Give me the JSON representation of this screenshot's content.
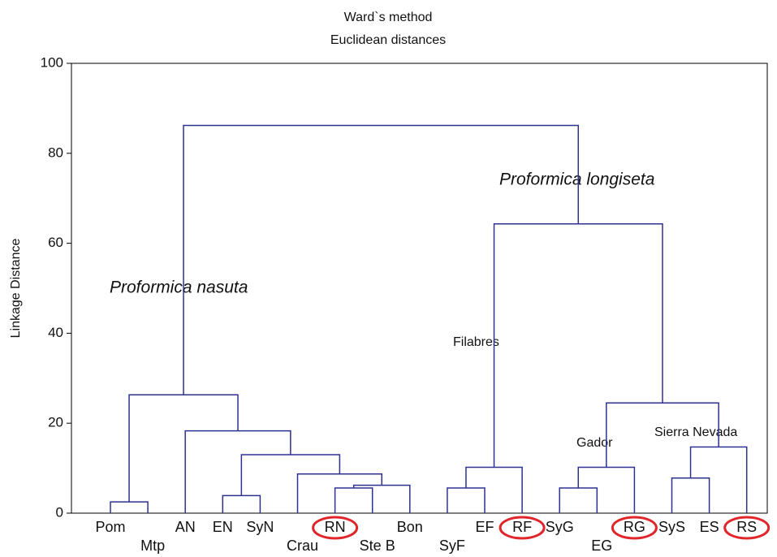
{
  "chart_data": {
    "type": "dendrogram",
    "title": "Ward`s method",
    "subtitle": "Euclidean distances",
    "y_label": "Linkage Distance",
    "ylim": [
      0,
      100
    ],
    "yticks": [
      0,
      20,
      40,
      60,
      80,
      100
    ],
    "color": "#2e3192",
    "circle_color": "#e0262b",
    "leaves": [
      "Pom",
      "Mtp",
      "AN",
      "EN",
      "SyN",
      "Crau",
      "RN",
      "Ste B",
      "Bon",
      "SyF",
      "EF",
      "RF",
      "SyG",
      "EG",
      "RG",
      "SyS",
      "ES",
      "RS"
    ],
    "circled": [
      6,
      11,
      14,
      17
    ],
    "merges": [
      {
        "left": 0,
        "right": 1,
        "height": 2.5
      },
      {
        "left": 3,
        "right": 4,
        "height": 3.9
      },
      {
        "left": 6,
        "right": 7,
        "height": 5.6
      },
      {
        "left": 20,
        "right": 8,
        "height": 6.2
      },
      {
        "left": 5,
        "right": 21,
        "height": 8.7
      },
      {
        "left": 19,
        "right": 22,
        "height": 13.0
      },
      {
        "left": 2,
        "right": 23,
        "height": 18.3
      },
      {
        "left": 18,
        "right": 24,
        "height": 26.3
      },
      {
        "left": 9,
        "right": 10,
        "height": 5.6
      },
      {
        "left": 26,
        "right": 11,
        "height": 10.2
      },
      {
        "left": 12,
        "right": 13,
        "height": 5.6
      },
      {
        "left": 28,
        "right": 14,
        "height": 10.2
      },
      {
        "left": 15,
        "right": 16,
        "height": 7.8
      },
      {
        "left": 30,
        "right": 17,
        "height": 14.7
      },
      {
        "left": 29,
        "right": 31,
        "height": 24.5
      },
      {
        "left": 27,
        "right": 32,
        "height": 64.3
      },
      {
        "left": 25,
        "right": 33,
        "height": 86.2
      }
    ],
    "annotations": [
      "Proformica nasuta",
      "Proformica longiseta",
      "Filabres",
      "Gador",
      "Sierra Nevada"
    ]
  }
}
